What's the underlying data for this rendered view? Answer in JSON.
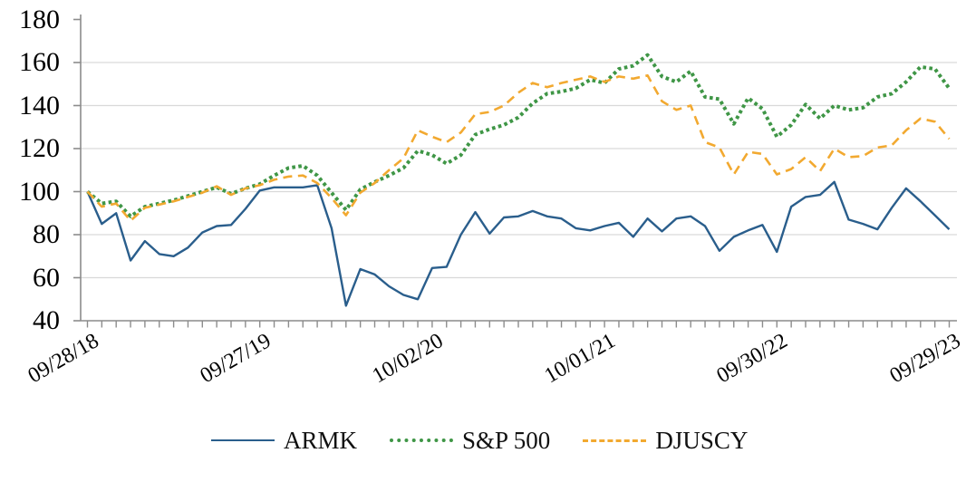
{
  "chart_data": {
    "type": "line",
    "title": "",
    "xlabel": "",
    "ylabel": "",
    "ylim": [
      40,
      180
    ],
    "y_ticks": [
      40,
      60,
      80,
      100,
      120,
      140,
      160,
      180
    ],
    "gridlines": [
      60,
      80,
      100,
      120,
      140,
      160
    ],
    "grid": "horizontal",
    "n_points": 61,
    "x_axis": {
      "tick_labels": [
        "09/28/18",
        "09/27/19",
        "10/02/20",
        "10/01/21",
        "09/30/22",
        "09/29/23"
      ],
      "tick_indices": [
        0,
        12,
        24,
        36,
        48,
        60
      ],
      "minor_ticks": "monthly"
    },
    "legend_position": "bottom",
    "colors": {
      "axis": "#8c8c8c",
      "grid": "#d9d9d9",
      "text": "#000000"
    },
    "series": [
      {
        "name": "ARMK",
        "style": "solid",
        "color": "#2a5e8c",
        "values": [
          100,
          85,
          90,
          68,
          77,
          71,
          70,
          74,
          81,
          84,
          84.5,
          92,
          100.5,
          102,
          102,
          102,
          103,
          83,
          47,
          64,
          61.5,
          56,
          52,
          50,
          64.5,
          65,
          80,
          90.5,
          80.5,
          88,
          88.5,
          91,
          88.5,
          87.5,
          83,
          82,
          84,
          85.5,
          79,
          87.5,
          81.5,
          87.5,
          88.5,
          84,
          72.5,
          79,
          82,
          84.5,
          72,
          93,
          97.5,
          98.5,
          104.5,
          87,
          85,
          82.5,
          92.5,
          101.5,
          95.5,
          89,
          82.5
        ]
      },
      {
        "name": "S&P 500",
        "style": "dotted",
        "color": "#3f9646",
        "values": [
          100,
          94.5,
          95.5,
          88.5,
          93,
          94.5,
          96,
          98,
          100,
          102,
          99,
          101.5,
          103.5,
          107.5,
          111,
          112,
          107.5,
          99.5,
          91.5,
          101,
          104.5,
          107.5,
          111,
          119,
          117,
          113,
          117,
          126.5,
          129,
          131,
          134.5,
          141,
          145.5,
          146.5,
          148,
          152,
          150.5,
          157,
          158.5,
          163.5,
          153.5,
          151,
          156,
          144,
          143,
          131.5,
          143.5,
          138.5,
          125.5,
          131,
          140.5,
          134,
          140,
          138,
          139,
          144,
          145.5,
          151,
          158,
          157,
          148
        ]
      },
      {
        "name": "DJUSCY",
        "style": "dashed",
        "color": "#f2a930",
        "values": [
          100,
          93,
          94.5,
          86.5,
          92.5,
          94,
          95.5,
          97.5,
          99.5,
          102.5,
          98.5,
          101.5,
          103,
          105.5,
          107,
          107.5,
          104,
          97,
          89,
          99.5,
          104,
          110,
          115.5,
          128.5,
          125.5,
          123,
          127.5,
          136,
          137,
          140,
          146,
          150.5,
          148.5,
          150.5,
          152,
          153.5,
          151,
          153.5,
          152.5,
          154,
          142,
          138,
          140,
          123,
          120.5,
          108,
          118.5,
          117.5,
          108,
          110.5,
          116,
          109.5,
          120,
          116,
          116.5,
          120.5,
          121.5,
          128.5,
          134,
          132.5,
          124.5
        ]
      }
    ]
  }
}
